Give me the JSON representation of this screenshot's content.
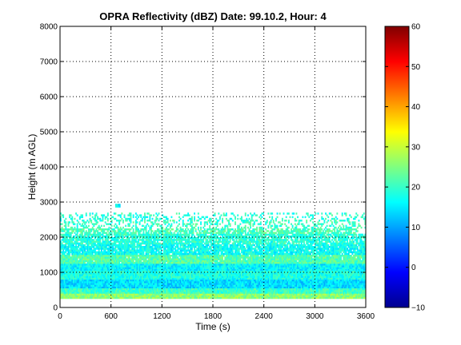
{
  "chart_data": {
    "type": "heatmap",
    "title": "OPRA Reflectivity (dBZ)  Date: 99.10.2, Hour: 4",
    "xlabel": "Time (s)",
    "ylabel": "Height (m AGL)",
    "xlim": [
      0,
      3600
    ],
    "ylim": [
      0,
      8000
    ],
    "xticks": [
      0,
      600,
      1200,
      1800,
      2400,
      3000,
      3600
    ],
    "yticks": [
      0,
      1000,
      2000,
      3000,
      4000,
      5000,
      6000,
      7000,
      8000
    ],
    "grid": true,
    "colormap": "jet",
    "colorbar": {
      "min": -10,
      "max": 60,
      "ticks": [
        -10,
        0,
        10,
        20,
        30,
        40,
        50,
        60
      ]
    },
    "bands": [
      {
        "y0": 250,
        "y1": 400,
        "dbz": 26,
        "xfrom": 0,
        "xto": 3600,
        "cover": 1.0
      },
      {
        "y0": 400,
        "y1": 550,
        "dbz": 20,
        "xfrom": 0,
        "xto": 3600,
        "cover": 1.0
      },
      {
        "y0": 550,
        "y1": 800,
        "dbz": 14,
        "xfrom": 0,
        "xto": 3600,
        "cover": 1.0
      },
      {
        "y0": 800,
        "y1": 1050,
        "dbz": 18,
        "xfrom": 0,
        "xto": 3600,
        "cover": 1.0
      },
      {
        "y0": 1050,
        "y1": 1250,
        "dbz": 16,
        "xfrom": 0,
        "xto": 3600,
        "cover": 1.0
      },
      {
        "y0": 1250,
        "y1": 1500,
        "dbz": 22,
        "xfrom": 0,
        "xto": 3600,
        "cover": 0.97
      },
      {
        "y0": 1500,
        "y1": 1800,
        "dbz": 17,
        "xfrom": 0,
        "xto": 3600,
        "cover": 0.9
      },
      {
        "y0": 1800,
        "y1": 2100,
        "dbz": 19,
        "xfrom": 0,
        "xto": 3600,
        "cover": 0.85
      },
      {
        "y0": 2100,
        "y1": 2250,
        "dbz": 21,
        "xfrom": 0,
        "xto": 3500,
        "cover": 0.7
      },
      {
        "y0": 2250,
        "y1": 2500,
        "dbz": 20,
        "xfrom": 0,
        "xto": 3600,
        "cover": 0.35
      },
      {
        "y0": 2500,
        "y1": 2700,
        "dbz": 19,
        "xfrom": 0,
        "xto": 3600,
        "cover": 0.28
      },
      {
        "y0": 2850,
        "y1": 2950,
        "dbz": 17,
        "xfrom": 650,
        "xto": 700,
        "cover": 1.0
      }
    ]
  }
}
